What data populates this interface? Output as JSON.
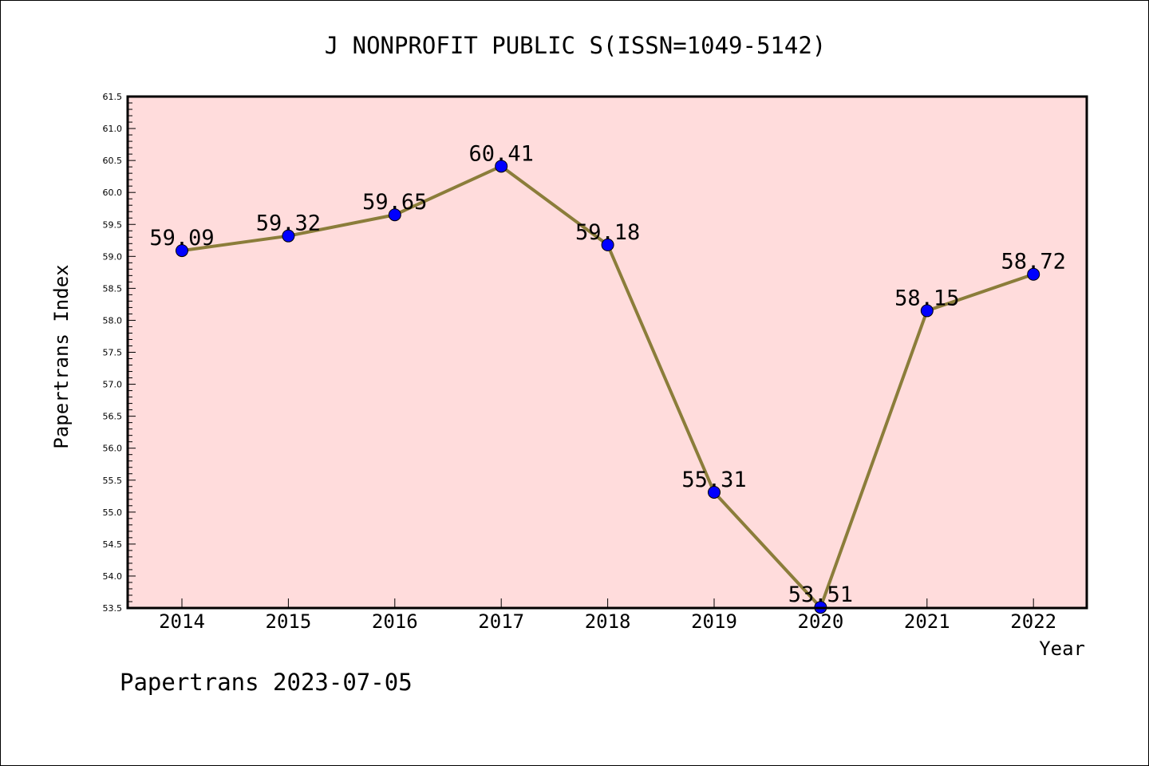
{
  "chart_data": {
    "type": "line",
    "title": "J NONPROFIT PUBLIC S(ISSN=1049-5142)",
    "xlabel": "Year",
    "ylabel": "Papertrans Index",
    "categories": [
      "2014",
      "2015",
      "2016",
      "2017",
      "2018",
      "2019",
      "2020",
      "2021",
      "2022"
    ],
    "series": [
      {
        "values": [
          59.09,
          59.32,
          59.65,
          60.41,
          59.18,
          55.31,
          53.51,
          58.15,
          58.72
        ],
        "data_labels": [
          "59.09",
          "59.32",
          "59.65",
          "60.41",
          "59.18",
          "55.31",
          "53.51",
          "58.15",
          "58.72"
        ],
        "line_color": "#8B7D3A",
        "marker_color": "#0000FF"
      }
    ],
    "ylim": [
      53.5,
      61.5
    ],
    "y_ticks": [
      "53.5",
      "54.0",
      "54.5",
      "55.0",
      "55.5",
      "56.0",
      "56.5",
      "57.0",
      "57.5",
      "58.0",
      "58.5",
      "59.0",
      "59.5",
      "60.0",
      "60.5",
      "61.0",
      "61.5"
    ],
    "plot_background": "#FFDCDC",
    "grid": false,
    "legend": "none"
  },
  "footer": {
    "credit": "Papertrans 2023-07-05"
  }
}
